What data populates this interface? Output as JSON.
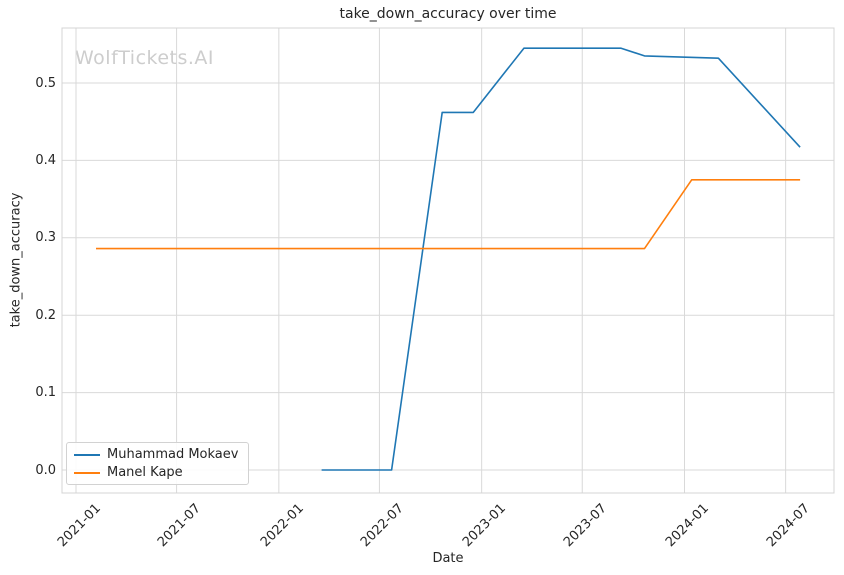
{
  "chart_data": {
    "type": "line",
    "title": "take_down_accuracy over time",
    "watermark": "WolfTickets.AI",
    "xlabel": "Date",
    "ylabel": "take_down_accuracy",
    "x_ticks": [
      "2021-01",
      "2021-07",
      "2022-01",
      "2022-07",
      "2023-01",
      "2023-07",
      "2024-01",
      "2024-07"
    ],
    "y_ticks": [
      "0.0",
      "0.1",
      "0.2",
      "0.3",
      "0.4",
      "0.5"
    ],
    "ylim": [
      -0.03,
      0.571
    ],
    "grid": true,
    "legend_position": "lower-left",
    "series": [
      {
        "name": "Muhammad Mokaev",
        "color": "#1f77b4",
        "points": [
          [
            "2022-03-19",
            0.0
          ],
          [
            "2022-07-23",
            0.0
          ],
          [
            "2022-10-22",
            0.462
          ],
          [
            "2022-12-17",
            0.462
          ],
          [
            "2023-03-18",
            0.545
          ],
          [
            "2023-09-09",
            0.545
          ],
          [
            "2023-10-21",
            0.535
          ],
          [
            "2024-03-02",
            0.532
          ],
          [
            "2024-07-27",
            0.417
          ]
        ]
      },
      {
        "name": "Manel Kape",
        "color": "#ff7f0e",
        "points": [
          [
            "2021-02-06",
            0.286
          ],
          [
            "2023-10-21",
            0.286
          ],
          [
            "2024-01-14",
            0.375
          ],
          [
            "2024-07-27",
            0.375
          ]
        ]
      }
    ],
    "colors": {
      "grid": "#d9d9d9",
      "axis_border": "#d4d4d4",
      "text": "#262626",
      "watermark": "#cdcdcd",
      "legend_border": "#d2d2d2"
    }
  }
}
